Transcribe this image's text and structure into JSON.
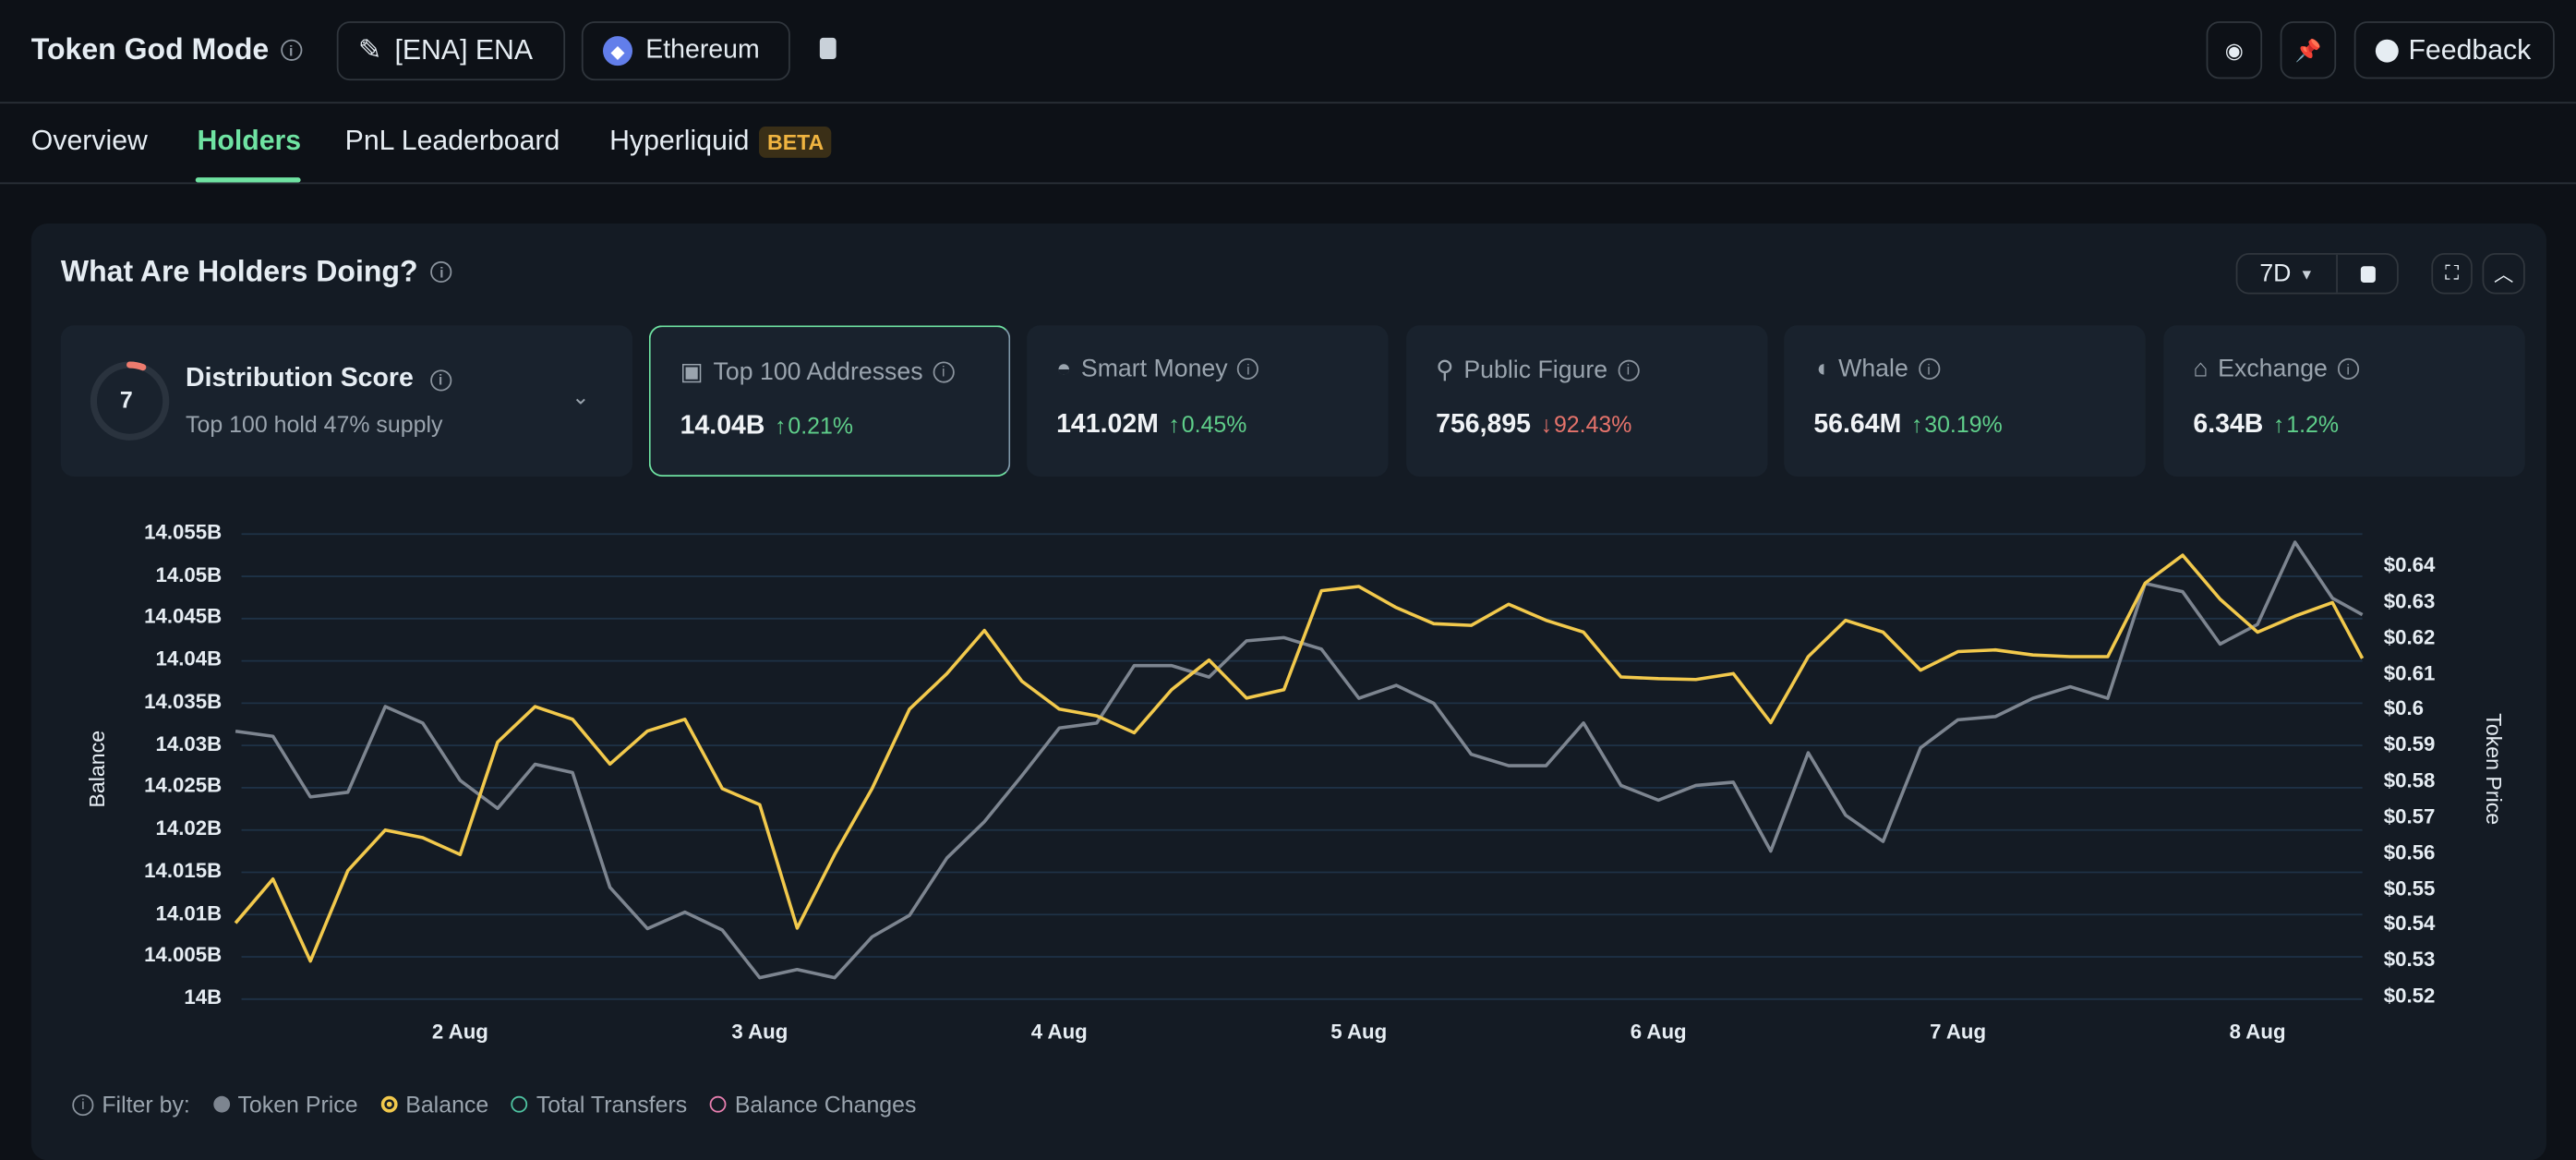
{
  "header": {
    "title": "Token God Mode",
    "token_label": "[ENA] ENA",
    "chain_label": "Ethereum",
    "feedback_label": "Feedback"
  },
  "tabs": [
    {
      "label": "Overview"
    },
    {
      "label": "Holders",
      "active": true
    },
    {
      "label": "PnL Leaderboard"
    },
    {
      "label": "Hyperliquid",
      "badge": "BETA"
    }
  ],
  "section": {
    "title": "What Are Holders Doing?",
    "range": "7D"
  },
  "distribution": {
    "score": "7",
    "title": "Distribution Score",
    "subtitle": "Top 100 hold 47% supply"
  },
  "cards": [
    {
      "label": "Top 100 Addresses",
      "value": "14.04B",
      "change": "0.21%",
      "dir": "up",
      "icon": "cash-icon"
    },
    {
      "label": "Smart Money",
      "value": "141.02M",
      "change": "0.45%",
      "dir": "up",
      "icon": "sunglasses-icon"
    },
    {
      "label": "Public Figure",
      "value": "756,895",
      "change": "92.43%",
      "dir": "down",
      "icon": "speaker-icon"
    },
    {
      "label": "Whale",
      "value": "56.64M",
      "change": "30.19%",
      "dir": "up",
      "icon": "whale-icon"
    },
    {
      "label": "Exchange",
      "value": "6.34B",
      "change": "1.2%",
      "dir": "up",
      "icon": "bank-icon"
    }
  ],
  "legend": {
    "prefix": "Filter by:",
    "items": [
      "Token Price",
      "Balance",
      "Total Transfers",
      "Balance Changes"
    ]
  },
  "colors": {
    "balance": "#f2c94c",
    "price": "#7d8590",
    "accent": "#6fe3a2"
  },
  "chart_data": {
    "type": "line",
    "xlabel": "",
    "ylabel": "Balance",
    "y2label": "Token Price",
    "x_unit": "day of August",
    "x_start": 1.25,
    "x_step": 0.125,
    "xlim": [
      1.27,
      8.35
    ],
    "x_ticks": [
      {
        "v": 2,
        "label": "2 Aug"
      },
      {
        "v": 3,
        "label": "3 Aug"
      },
      {
        "v": 4,
        "label": "4 Aug"
      },
      {
        "v": 5,
        "label": "5 Aug"
      },
      {
        "v": 6,
        "label": "6 Aug"
      },
      {
        "v": 7,
        "label": "7 Aug"
      },
      {
        "v": 8,
        "label": "8 Aug"
      }
    ],
    "ylim": [
      14.0,
      14.055
    ],
    "y_ticks": [
      "14B",
      "14.005B",
      "14.01B",
      "14.015B",
      "14.02B",
      "14.025B",
      "14.03B",
      "14.035B",
      "14.04B",
      "14.045B",
      "14.05B",
      "14.055B"
    ],
    "y2lim": [
      0.52,
      0.64
    ],
    "y2_ticks": [
      "$0.52",
      "$0.53",
      "$0.54",
      "$0.55",
      "$0.56",
      "$0.57",
      "$0.58",
      "$0.59",
      "$0.6",
      "$0.61",
      "$0.62",
      "$0.63",
      "$0.64"
    ],
    "series": [
      {
        "name": "Balance",
        "axis": "left",
        "values": [
          14.009,
          14.0142,
          14.0045,
          14.0152,
          14.02,
          14.0191,
          14.0171,
          14.0304,
          14.0346,
          14.0331,
          14.0278,
          14.0317,
          14.0331,
          14.0249,
          14.023,
          14.0084,
          14.0171,
          14.0249,
          14.0343,
          14.0385,
          14.0436,
          14.0376,
          14.0343,
          14.0335,
          14.0315,
          14.0366,
          14.0401,
          14.0356,
          14.0366,
          14.0483,
          14.0488,
          14.0463,
          14.0444,
          14.0442,
          14.0467,
          14.0448,
          14.0434,
          14.0381,
          14.0379,
          14.0378,
          14.0385,
          14.0327,
          14.0405,
          14.0448,
          14.0434,
          14.0389,
          14.0411,
          14.0413,
          14.0407,
          14.0405,
          14.0405,
          14.0492,
          14.0525,
          14.0473,
          14.0434,
          14.0453,
          14.0469,
          14.0403
        ]
      },
      {
        "name": "Token Price",
        "axis": "right",
        "values": [
          0.5942,
          0.5928,
          0.5759,
          0.5772,
          0.6011,
          0.5965,
          0.5805,
          0.5727,
          0.585,
          0.5827,
          0.5507,
          0.5392,
          0.5438,
          0.5388,
          0.5255,
          0.5278,
          0.5255,
          0.5369,
          0.5429,
          0.5589,
          0.569,
          0.5818,
          0.5951,
          0.5965,
          0.6125,
          0.6125,
          0.6093,
          0.6194,
          0.6203,
          0.6171,
          0.6034,
          0.607,
          0.602,
          0.5878,
          0.5846,
          0.5846,
          0.5965,
          0.5791,
          0.575,
          0.5791,
          0.58,
          0.5608,
          0.5882,
          0.5708,
          0.5635,
          0.5896,
          0.5974,
          0.5983,
          0.6034,
          0.6066,
          0.6034,
          0.6354,
          0.6331,
          0.6185,
          0.624,
          0.6469,
          0.6313,
          0.6267
        ]
      }
    ]
  }
}
